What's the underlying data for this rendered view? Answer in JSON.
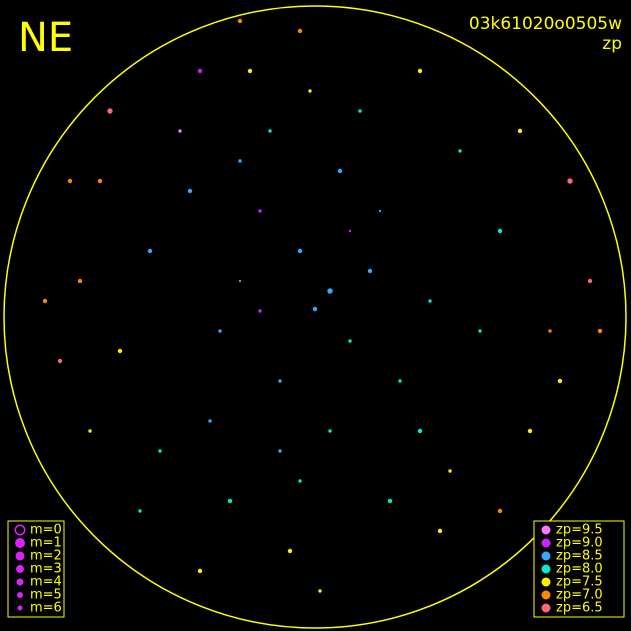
{
  "chart_data": {
    "type": "scatter",
    "title": "NE",
    "subtitle": "03k61020o0505w",
    "color_label": "zp",
    "xlim": [
      0,
      631
    ],
    "ylim": [
      631,
      0
    ],
    "x": [
      315,
      280,
      350,
      300,
      260,
      240,
      330,
      370,
      400,
      220,
      190,
      420,
      450,
      300,
      340,
      270,
      310,
      250,
      360,
      380,
      210,
      230,
      290,
      320,
      440,
      160,
      150,
      480,
      500,
      120,
      100,
      90,
      530,
      550,
      570,
      80,
      60,
      300,
      240,
      200,
      420,
      260,
      350,
      180,
      460,
      390,
      240,
      330,
      280,
      140,
      500,
      520,
      110,
      70,
      560,
      590,
      45,
      600,
      200,
      430
    ],
    "y": [
      322,
      250,
      290,
      380,
      420,
      350,
      200,
      360,
      250,
      300,
      440,
      200,
      160,
      150,
      460,
      500,
      540,
      560,
      520,
      420,
      210,
      130,
      80,
      40,
      100,
      180,
      380,
      300,
      400,
      280,
      450,
      200,
      200,
      300,
      450,
      350,
      270,
      600,
      610,
      60,
      560,
      320,
      400,
      500,
      480,
      130,
      470,
      340,
      180,
      120,
      120,
      500,
      520,
      450,
      250,
      350,
      330,
      300,
      560,
      330
    ],
    "zp": [
      8.5,
      8.5,
      8.0,
      8.5,
      9.0,
      8.5,
      8.0,
      8.5,
      8.0,
      8.5,
      8.5,
      8.0,
      7.5,
      8.0,
      8.5,
      8.0,
      7.5,
      7.5,
      8.0,
      8.5,
      8.5,
      8.0,
      7.5,
      7.5,
      7.5,
      8.0,
      8.5,
      8.0,
      8.0,
      7.5,
      7.0,
      7.5,
      7.5,
      7.0,
      6.5,
      7.0,
      6.5,
      7.0,
      7.0,
      7.5,
      7.5,
      9.0,
      9.0,
      9.5,
      8.0,
      8.0,
      8.5,
      8.5,
      8.5,
      8.0,
      7.0,
      7.5,
      6.5,
      7.0,
      7.5,
      6.5,
      7.0,
      7.0,
      9.0,
      8.0
    ],
    "m": [
      4,
      5,
      5,
      4,
      5,
      6,
      5,
      4,
      5,
      5,
      4,
      4,
      5,
      5,
      4,
      5,
      5,
      4,
      5,
      6,
      5,
      4,
      4,
      5,
      4,
      5,
      4,
      5,
      4,
      4,
      4,
      5,
      4,
      5,
      3,
      4,
      4,
      4,
      4,
      4,
      4,
      5,
      6,
      5,
      5,
      4,
      5,
      3,
      5,
      5,
      4,
      4,
      3,
      4,
      4,
      4,
      4,
      4,
      4,
      5
    ],
    "size_legend": [
      {
        "value": 0,
        "label": "m=0"
      },
      {
        "value": 1,
        "label": "m=1"
      },
      {
        "value": 2,
        "label": "m=2"
      },
      {
        "value": 3,
        "label": "m=3"
      },
      {
        "value": 4,
        "label": "m=4"
      },
      {
        "value": 5,
        "label": "m=5"
      },
      {
        "value": 6,
        "label": "m=6"
      }
    ],
    "color_legend": [
      {
        "value": 9.5,
        "label": "zp=9.5",
        "color": "#ff77ff"
      },
      {
        "value": 9.0,
        "label": "zp=9.0",
        "color": "#cc22ff"
      },
      {
        "value": 8.5,
        "label": "zp=8.5",
        "color": "#33aaff"
      },
      {
        "value": 8.0,
        "label": "zp=8.0",
        "color": "#00eecc"
      },
      {
        "value": 7.5,
        "label": "zp=7.5",
        "color": "#ffee00"
      },
      {
        "value": 7.0,
        "label": "zp=7.0",
        "color": "#ff8800"
      },
      {
        "value": 6.5,
        "label": "zp=6.5",
        "color": "#ff6677"
      }
    ]
  }
}
